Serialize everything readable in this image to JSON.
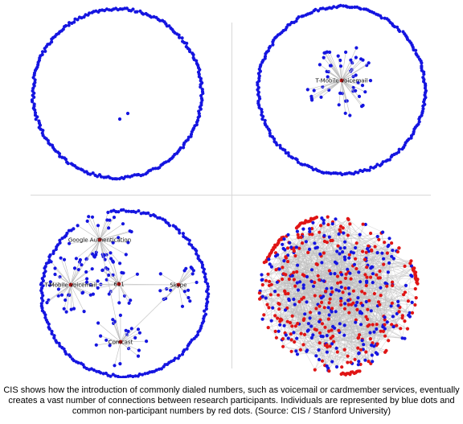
{
  "colors": {
    "participant": "#1515e0",
    "non_participant": "#e01515",
    "hub": "#c01010",
    "edge": "#bdbdbd",
    "divider": "#d8d8d8"
  },
  "panels": [
    {
      "id": "panel-1",
      "labels": []
    },
    {
      "id": "panel-2",
      "labels": [
        "T-Mobile Voicemail"
      ]
    },
    {
      "id": "panel-3",
      "labels": [
        "Google Authentication",
        "T-Mobile Voicemail",
        "611",
        "Skype",
        "Comcast"
      ]
    },
    {
      "id": "panel-4",
      "labels": []
    }
  ],
  "caption": "CIS shows how the introduction of commonly dialed numbers, such as voicemail or cardmember services, eventually creates a vast number of connections between research participants. Individuals are represented by blue dots and common non-participant numbers by red dots. (Source: CIS / Stanford University)"
}
